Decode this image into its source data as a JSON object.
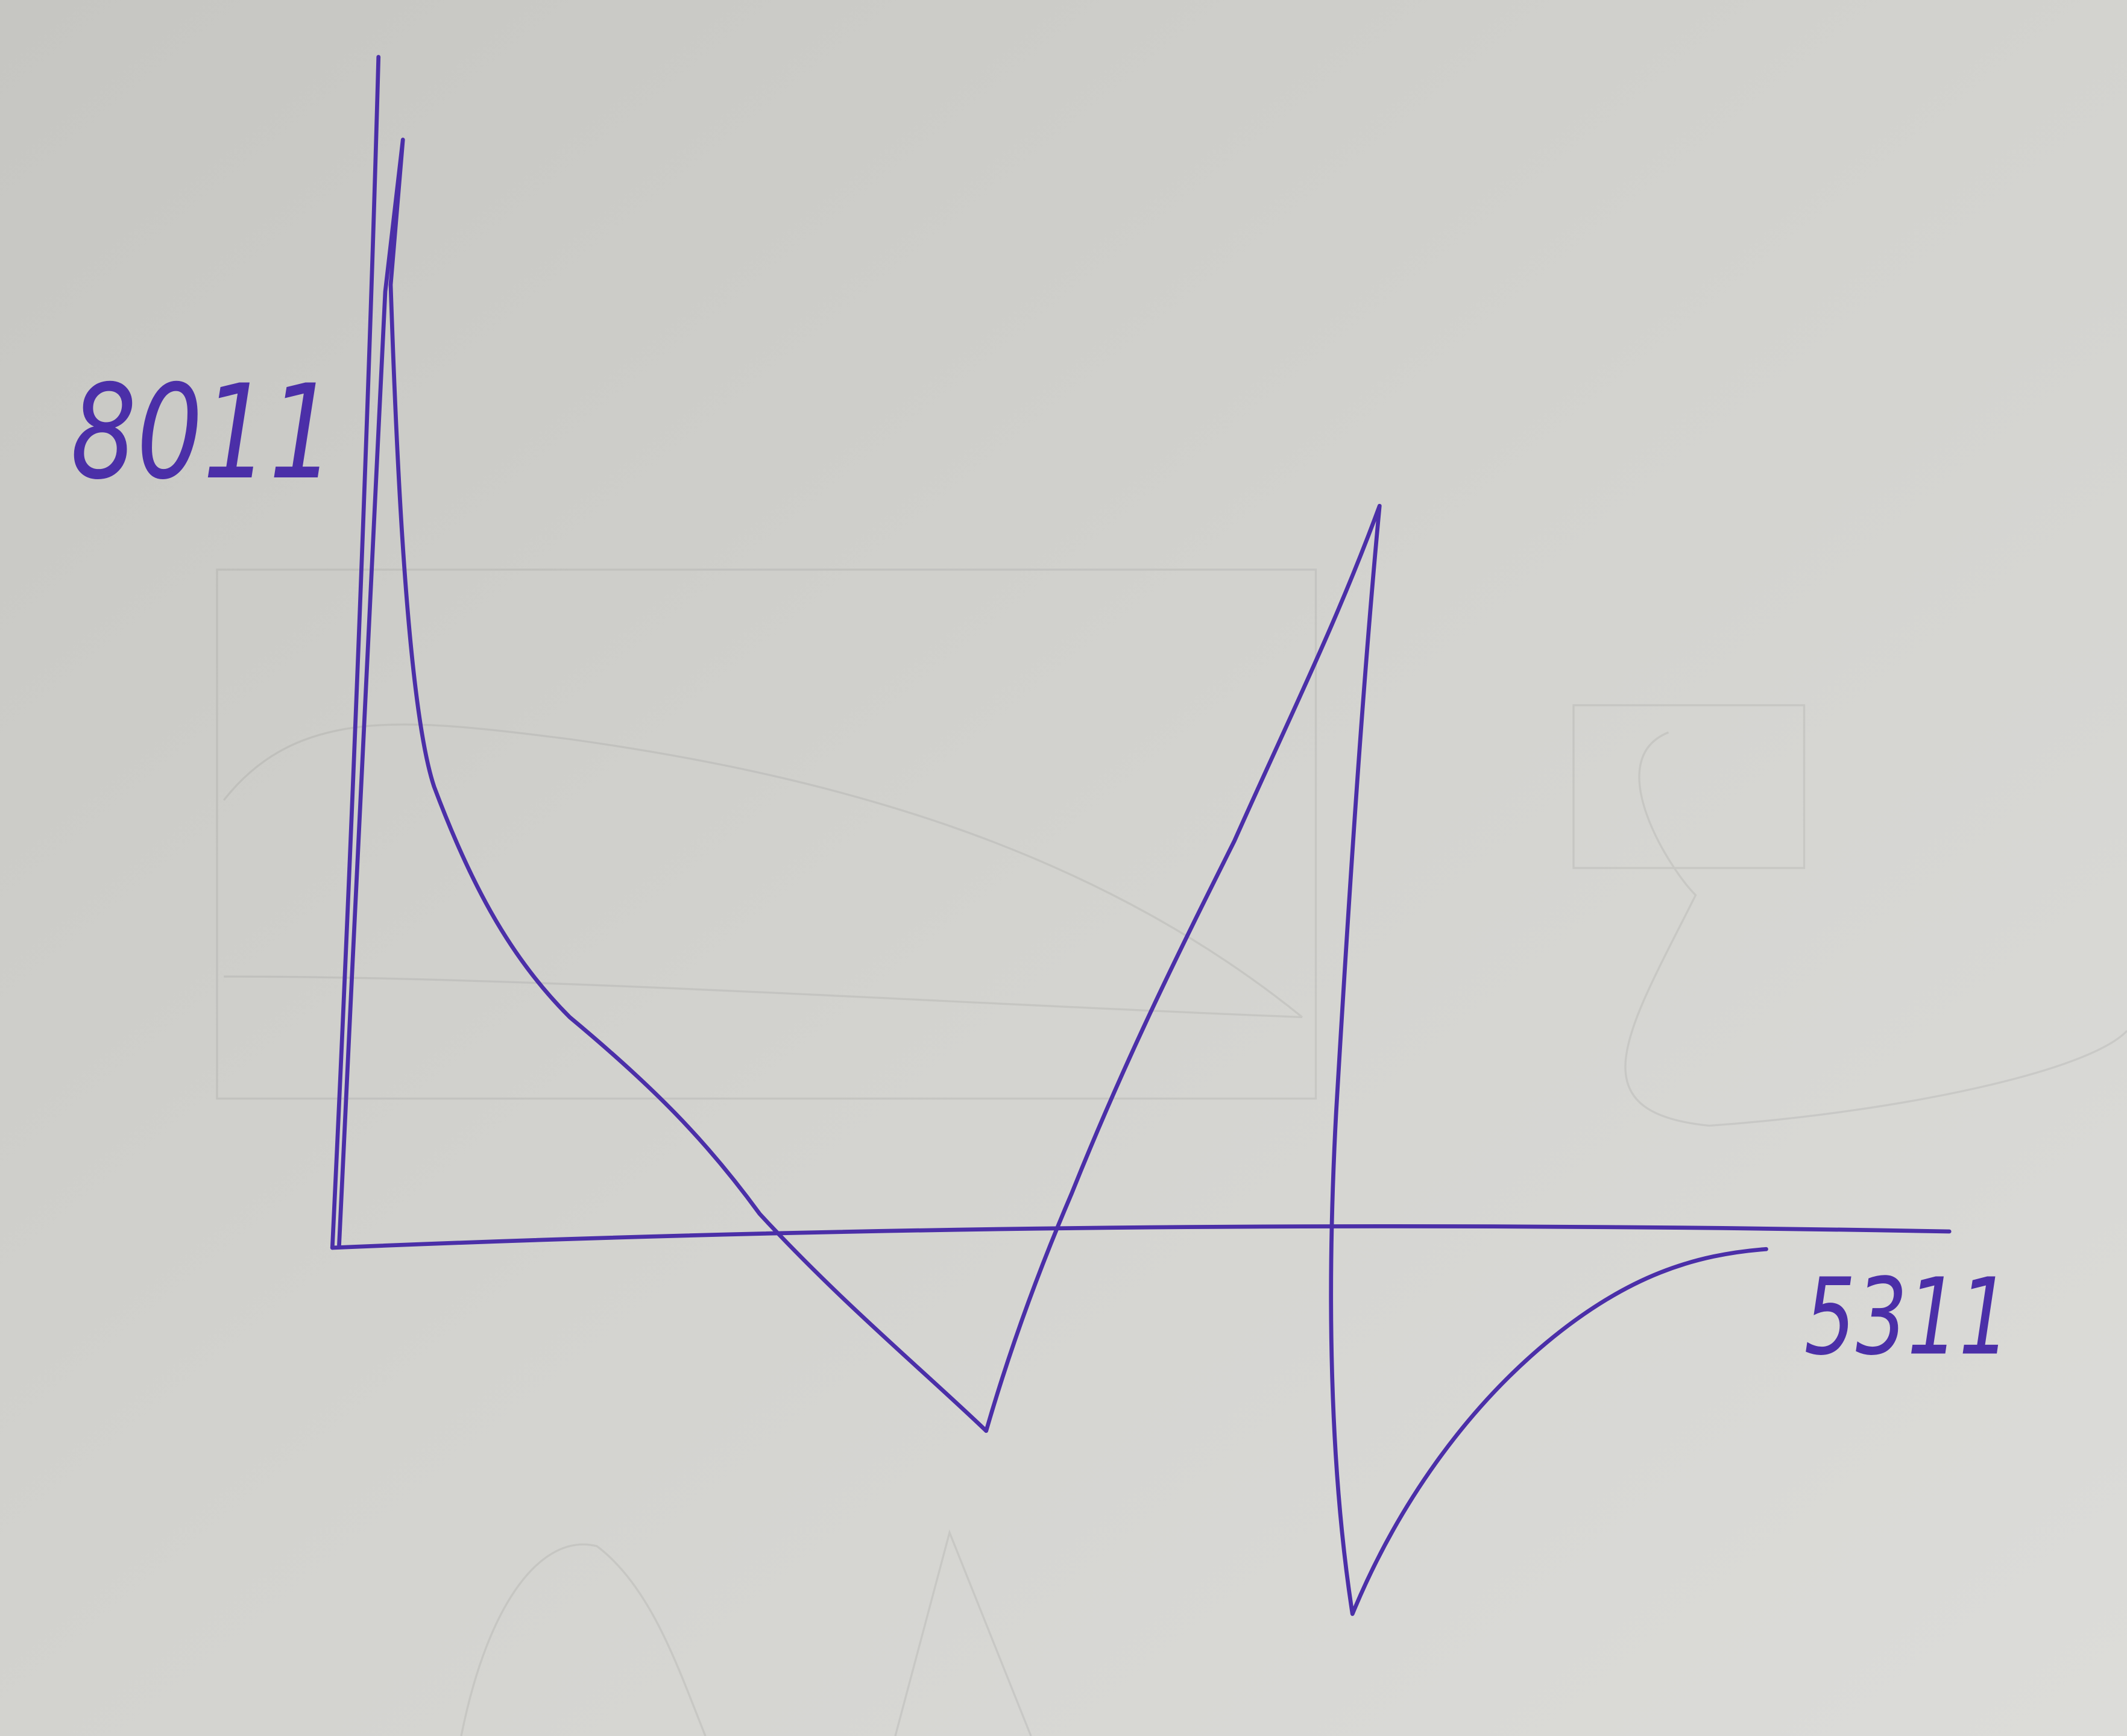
{
  "labels": {
    "top_left": "8011",
    "bottom_right": "5311"
  }
}
